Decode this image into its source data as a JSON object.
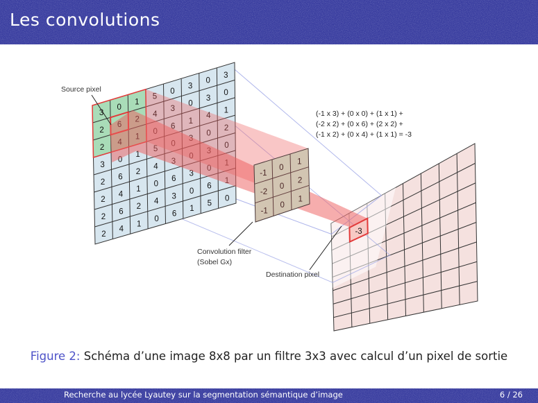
{
  "slide": {
    "title": "Les convolutions",
    "caption_label": "Figure 2:",
    "caption_text": "Schéma d’une image 8x8 par un filtre 3x3 avec calcul d’un pixel de sortie",
    "footer_text": "Recherche au lycée Lyautey sur la segmentation sémantique d’image",
    "page_number": "6 / 26"
  },
  "diagram": {
    "source_label": "Source pixel",
    "filter_label_line1": "Convolution filter",
    "filter_label_line2": "(Sobel Gx)",
    "dest_label": "Destination pixel",
    "formula": [
      "(-1 x 3) + (0 x 0) + (1 x 1) +",
      "(-2 x 2) + (0 x 6) + (2 x 2) +",
      "(-1 x 2) + (0 x 4) + (1 x 1) = -3"
    ],
    "source_grid": [
      [
        "3",
        "0",
        "1",
        "5",
        "0",
        "3",
        "0",
        "3"
      ],
      [
        "2",
        "6",
        "2",
        "4",
        "3",
        "0",
        "3",
        "0"
      ],
      [
        "2",
        "4",
        "1",
        "0",
        "6",
        "1",
        "4",
        "1"
      ],
      [
        "3",
        "0",
        "1",
        "5",
        "0",
        "3",
        "0",
        "2"
      ],
      [
        "2",
        "6",
        "2",
        "4",
        "3",
        "0",
        "3",
        "0"
      ],
      [
        "2",
        "4",
        "1",
        "0",
        "6",
        "3",
        "0",
        "1"
      ],
      [
        "2",
        "6",
        "2",
        "4",
        "3",
        "0",
        "6",
        "1"
      ],
      [
        "2",
        "4",
        "1",
        "0",
        "6",
        "1",
        "5",
        "0"
      ]
    ],
    "filter_grid": [
      [
        "-1",
        "0",
        "1"
      ],
      [
        "-2",
        "0",
        "2"
      ],
      [
        "-1",
        "0",
        "1"
      ]
    ],
    "dest_value": "-3",
    "colors": {
      "source_fill": "#d7e6ef",
      "window_fill": "#a9dcb8",
      "filter_fill": "#c8e8cf",
      "dest_fill": "#f5e1df",
      "highlight": "#e23a3a",
      "beam": "#ee5b5b",
      "projection": "#9aa3e6"
    }
  }
}
